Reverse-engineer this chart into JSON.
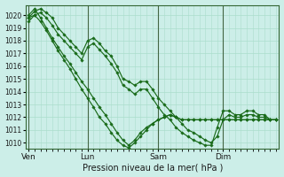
{
  "xlabel": "Pression niveau de la mer( hPa )",
  "bg_color": "#cceee8",
  "grid_color": "#aaddcc",
  "line_color": "#1a6b1a",
  "marker_color": "#1a6b1a",
  "ylim": [
    1009.5,
    1020.8
  ],
  "yticks": [
    1010,
    1011,
    1012,
    1013,
    1014,
    1015,
    1016,
    1017,
    1018,
    1019,
    1020
  ],
  "xtick_labels": [
    "Ven",
    "Lun",
    "Sam",
    "Dim"
  ],
  "xtick_positions": [
    0,
    10,
    22,
    33
  ],
  "vline_positions": [
    0,
    10,
    22,
    33
  ],
  "n_points": 43,
  "series": [
    [
      1019.8,
      1020.3,
      1020.5,
      1020.2,
      1019.8,
      1019.0,
      1018.5,
      1018.0,
      1017.5,
      1017.0,
      1018.0,
      1018.2,
      1017.8,
      1017.2,
      1016.8,
      1016.0,
      1015.0,
      1014.8,
      1014.5,
      1014.8,
      1014.8,
      1014.2,
      1013.5,
      1013.0,
      1012.5,
      1012.0,
      1011.5,
      1011.0,
      1010.8,
      1010.5,
      1010.2,
      1010.0,
      1010.5,
      1011.8,
      1012.2,
      1012.0,
      1012.0,
      1012.2,
      1012.2,
      1012.0,
      1012.0,
      1011.8,
      1011.8
    ],
    [
      1019.8,
      1020.0,
      1020.2,
      1019.8,
      1019.2,
      1018.5,
      1018.0,
      1017.5,
      1017.0,
      1016.5,
      1017.5,
      1017.8,
      1017.3,
      1016.8,
      1016.2,
      1015.5,
      1014.5,
      1014.2,
      1013.8,
      1014.2,
      1014.2,
      1013.5,
      1012.8,
      1012.2,
      1011.8,
      1011.2,
      1010.8,
      1010.5,
      1010.2,
      1010.0,
      1009.8,
      1009.8,
      1011.2,
      1012.5,
      1012.5,
      1012.2,
      1012.2,
      1012.5,
      1012.5,
      1012.2,
      1012.2,
      1011.8,
      1011.8
    ],
    [
      1020.0,
      1020.5,
      1019.8,
      1019.0,
      1018.2,
      1017.5,
      1016.8,
      1016.2,
      1015.5,
      1014.8,
      1014.2,
      1013.5,
      1012.8,
      1012.2,
      1011.5,
      1010.8,
      1010.2,
      1009.8,
      1010.2,
      1010.8,
      1011.2,
      1011.5,
      1011.8,
      1012.0,
      1012.2,
      1012.0,
      1011.8,
      1011.8,
      1011.8,
      1011.8,
      1011.8,
      1011.8,
      1011.8,
      1011.8,
      1011.8,
      1011.8,
      1011.8,
      1011.8,
      1011.8,
      1011.8,
      1011.8,
      1011.8,
      1011.8
    ],
    [
      1019.5,
      1020.0,
      1019.5,
      1018.8,
      1018.0,
      1017.2,
      1016.5,
      1015.8,
      1015.0,
      1014.2,
      1013.5,
      1012.8,
      1012.0,
      1011.5,
      1010.8,
      1010.2,
      1009.8,
      1009.6,
      1010.0,
      1010.5,
      1011.0,
      1011.5,
      1011.8,
      1012.0,
      1012.2,
      1012.0,
      1011.8,
      1011.8,
      1011.8,
      1011.8,
      1011.8,
      1011.8,
      1011.8,
      1011.8,
      1011.8,
      1011.8,
      1011.8,
      1011.8,
      1011.8,
      1011.8,
      1011.8,
      1011.8,
      1011.8
    ]
  ]
}
